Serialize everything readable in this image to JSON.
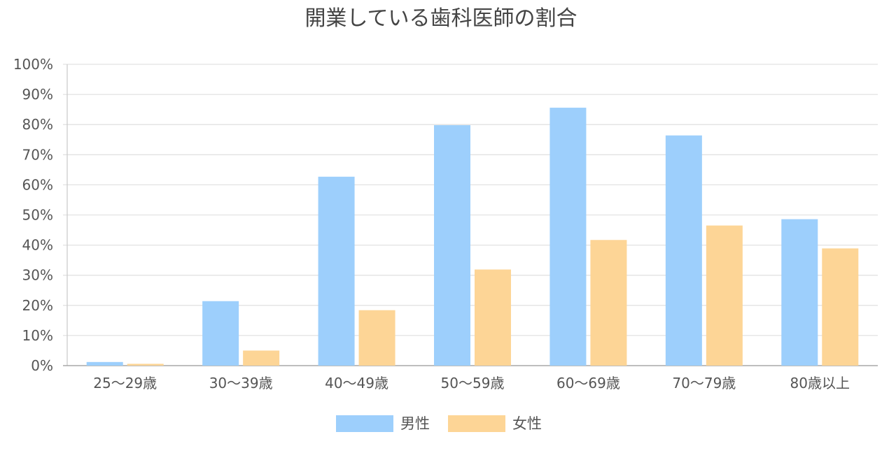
{
  "chart_data": {
    "type": "bar",
    "title": "開業している歯科医師の割合",
    "xlabel": "",
    "ylabel": "",
    "categories": [
      "25〜29歳",
      "30〜39歳",
      "40〜49歳",
      "50〜59歳",
      "60〜69歳",
      "70〜79歳",
      "80歳以上"
    ],
    "series": [
      {
        "name": "男性",
        "color": "#9dcffc",
        "values": [
          1.2,
          21.4,
          62.7,
          79.8,
          85.6,
          76.4,
          48.6
        ]
      },
      {
        "name": "女性",
        "color": "#fdd596",
        "values": [
          0.6,
          5.0,
          18.4,
          31.9,
          41.7,
          46.5,
          38.9
        ]
      }
    ],
    "ylim": [
      0,
      100
    ],
    "yticks": [
      "0%",
      "10%",
      "20%",
      "30%",
      "40%",
      "50%",
      "60%",
      "70%",
      "80%",
      "90%",
      "100%"
    ],
    "grid": true,
    "legend_position": "bottom"
  }
}
